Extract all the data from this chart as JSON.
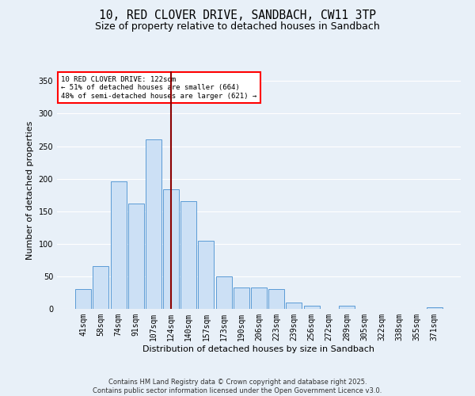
{
  "title": "10, RED CLOVER DRIVE, SANDBACH, CW11 3TP",
  "subtitle": "Size of property relative to detached houses in Sandbach",
  "xlabel": "Distribution of detached houses by size in Sandbach",
  "ylabel": "Number of detached properties",
  "bar_labels": [
    "41sqm",
    "58sqm",
    "74sqm",
    "91sqm",
    "107sqm",
    "124sqm",
    "140sqm",
    "157sqm",
    "173sqm",
    "190sqm",
    "206sqm",
    "223sqm",
    "239sqm",
    "256sqm",
    "272sqm",
    "289sqm",
    "305sqm",
    "322sqm",
    "338sqm",
    "355sqm",
    "371sqm"
  ],
  "bar_values": [
    30,
    66,
    196,
    162,
    260,
    184,
    165,
    105,
    50,
    33,
    33,
    30,
    10,
    5,
    0,
    5,
    0,
    0,
    0,
    0,
    2
  ],
  "bar_color": "#cce0f5",
  "bar_edge_color": "#5b9bd5",
  "vline_x": 5,
  "vline_color": "#8b0000",
  "annotation_text": "10 RED CLOVER DRIVE: 122sqm\n← 51% of detached houses are smaller (664)\n48% of semi-detached houses are larger (621) →",
  "annotation_box_color": "white",
  "annotation_box_edge": "red",
  "ylim": [
    0,
    365
  ],
  "yticks": [
    0,
    50,
    100,
    150,
    200,
    250,
    300,
    350
  ],
  "footer": "Contains HM Land Registry data © Crown copyright and database right 2025.\nContains public sector information licensed under the Open Government Licence v3.0.",
  "bg_color": "#e8f0f8",
  "grid_color": "white",
  "title_fontsize": 10.5,
  "subtitle_fontsize": 9,
  "label_fontsize": 8,
  "tick_fontsize": 7,
  "footer_fontsize": 6
}
